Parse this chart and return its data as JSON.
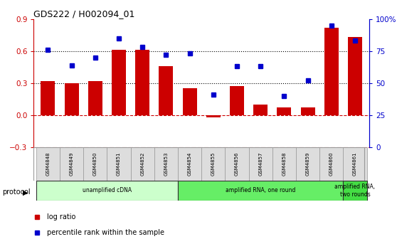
{
  "title": "GDS222 / H002094_01",
  "samples": [
    "GSM4848",
    "GSM4849",
    "GSM4850",
    "GSM4851",
    "GSM4852",
    "GSM4853",
    "GSM4854",
    "GSM4855",
    "GSM4856",
    "GSM4857",
    "GSM4858",
    "GSM4859",
    "GSM4860",
    "GSM4861"
  ],
  "log_ratio": [
    0.32,
    0.3,
    0.32,
    0.61,
    0.61,
    0.46,
    0.25,
    -0.02,
    0.27,
    0.1,
    0.07,
    0.07,
    0.82,
    0.73
  ],
  "percentile": [
    76,
    64,
    70,
    85,
    78,
    72,
    73,
    41,
    63,
    63,
    40,
    52,
    95,
    83
  ],
  "bar_color": "#cc0000",
  "dot_color": "#0000cc",
  "hline_y": 0.0,
  "hline_color": "#cc0000",
  "dotted_lines": [
    0.3,
    0.6
  ],
  "dotted_color": "black",
  "ylim_left": [
    -0.3,
    0.9
  ],
  "ylim_right": [
    0,
    100
  ],
  "yticks_left": [
    -0.3,
    0.0,
    0.3,
    0.6,
    0.9
  ],
  "yticks_right": [
    0,
    25,
    50,
    75,
    100
  ],
  "yticklabels_right": [
    "0",
    "25",
    "50",
    "75",
    "100%"
  ],
  "protocols": [
    {
      "label": "unamplified cDNA",
      "start": 0,
      "end": 5,
      "color": "#ccffcc"
    },
    {
      "label": "amplified RNA, one round",
      "start": 6,
      "end": 12,
      "color": "#66ee66"
    },
    {
      "label": "amplified RNA,\ntwo rounds",
      "start": 13,
      "end": 13,
      "color": "#44dd44"
    }
  ],
  "protocol_label": "protocol",
  "legend_log_ratio": "log ratio",
  "legend_percentile": "percentile rank within the sample",
  "fig_bg": "#ffffff",
  "sample_bg": "#dddddd",
  "sample_border": "#999999"
}
